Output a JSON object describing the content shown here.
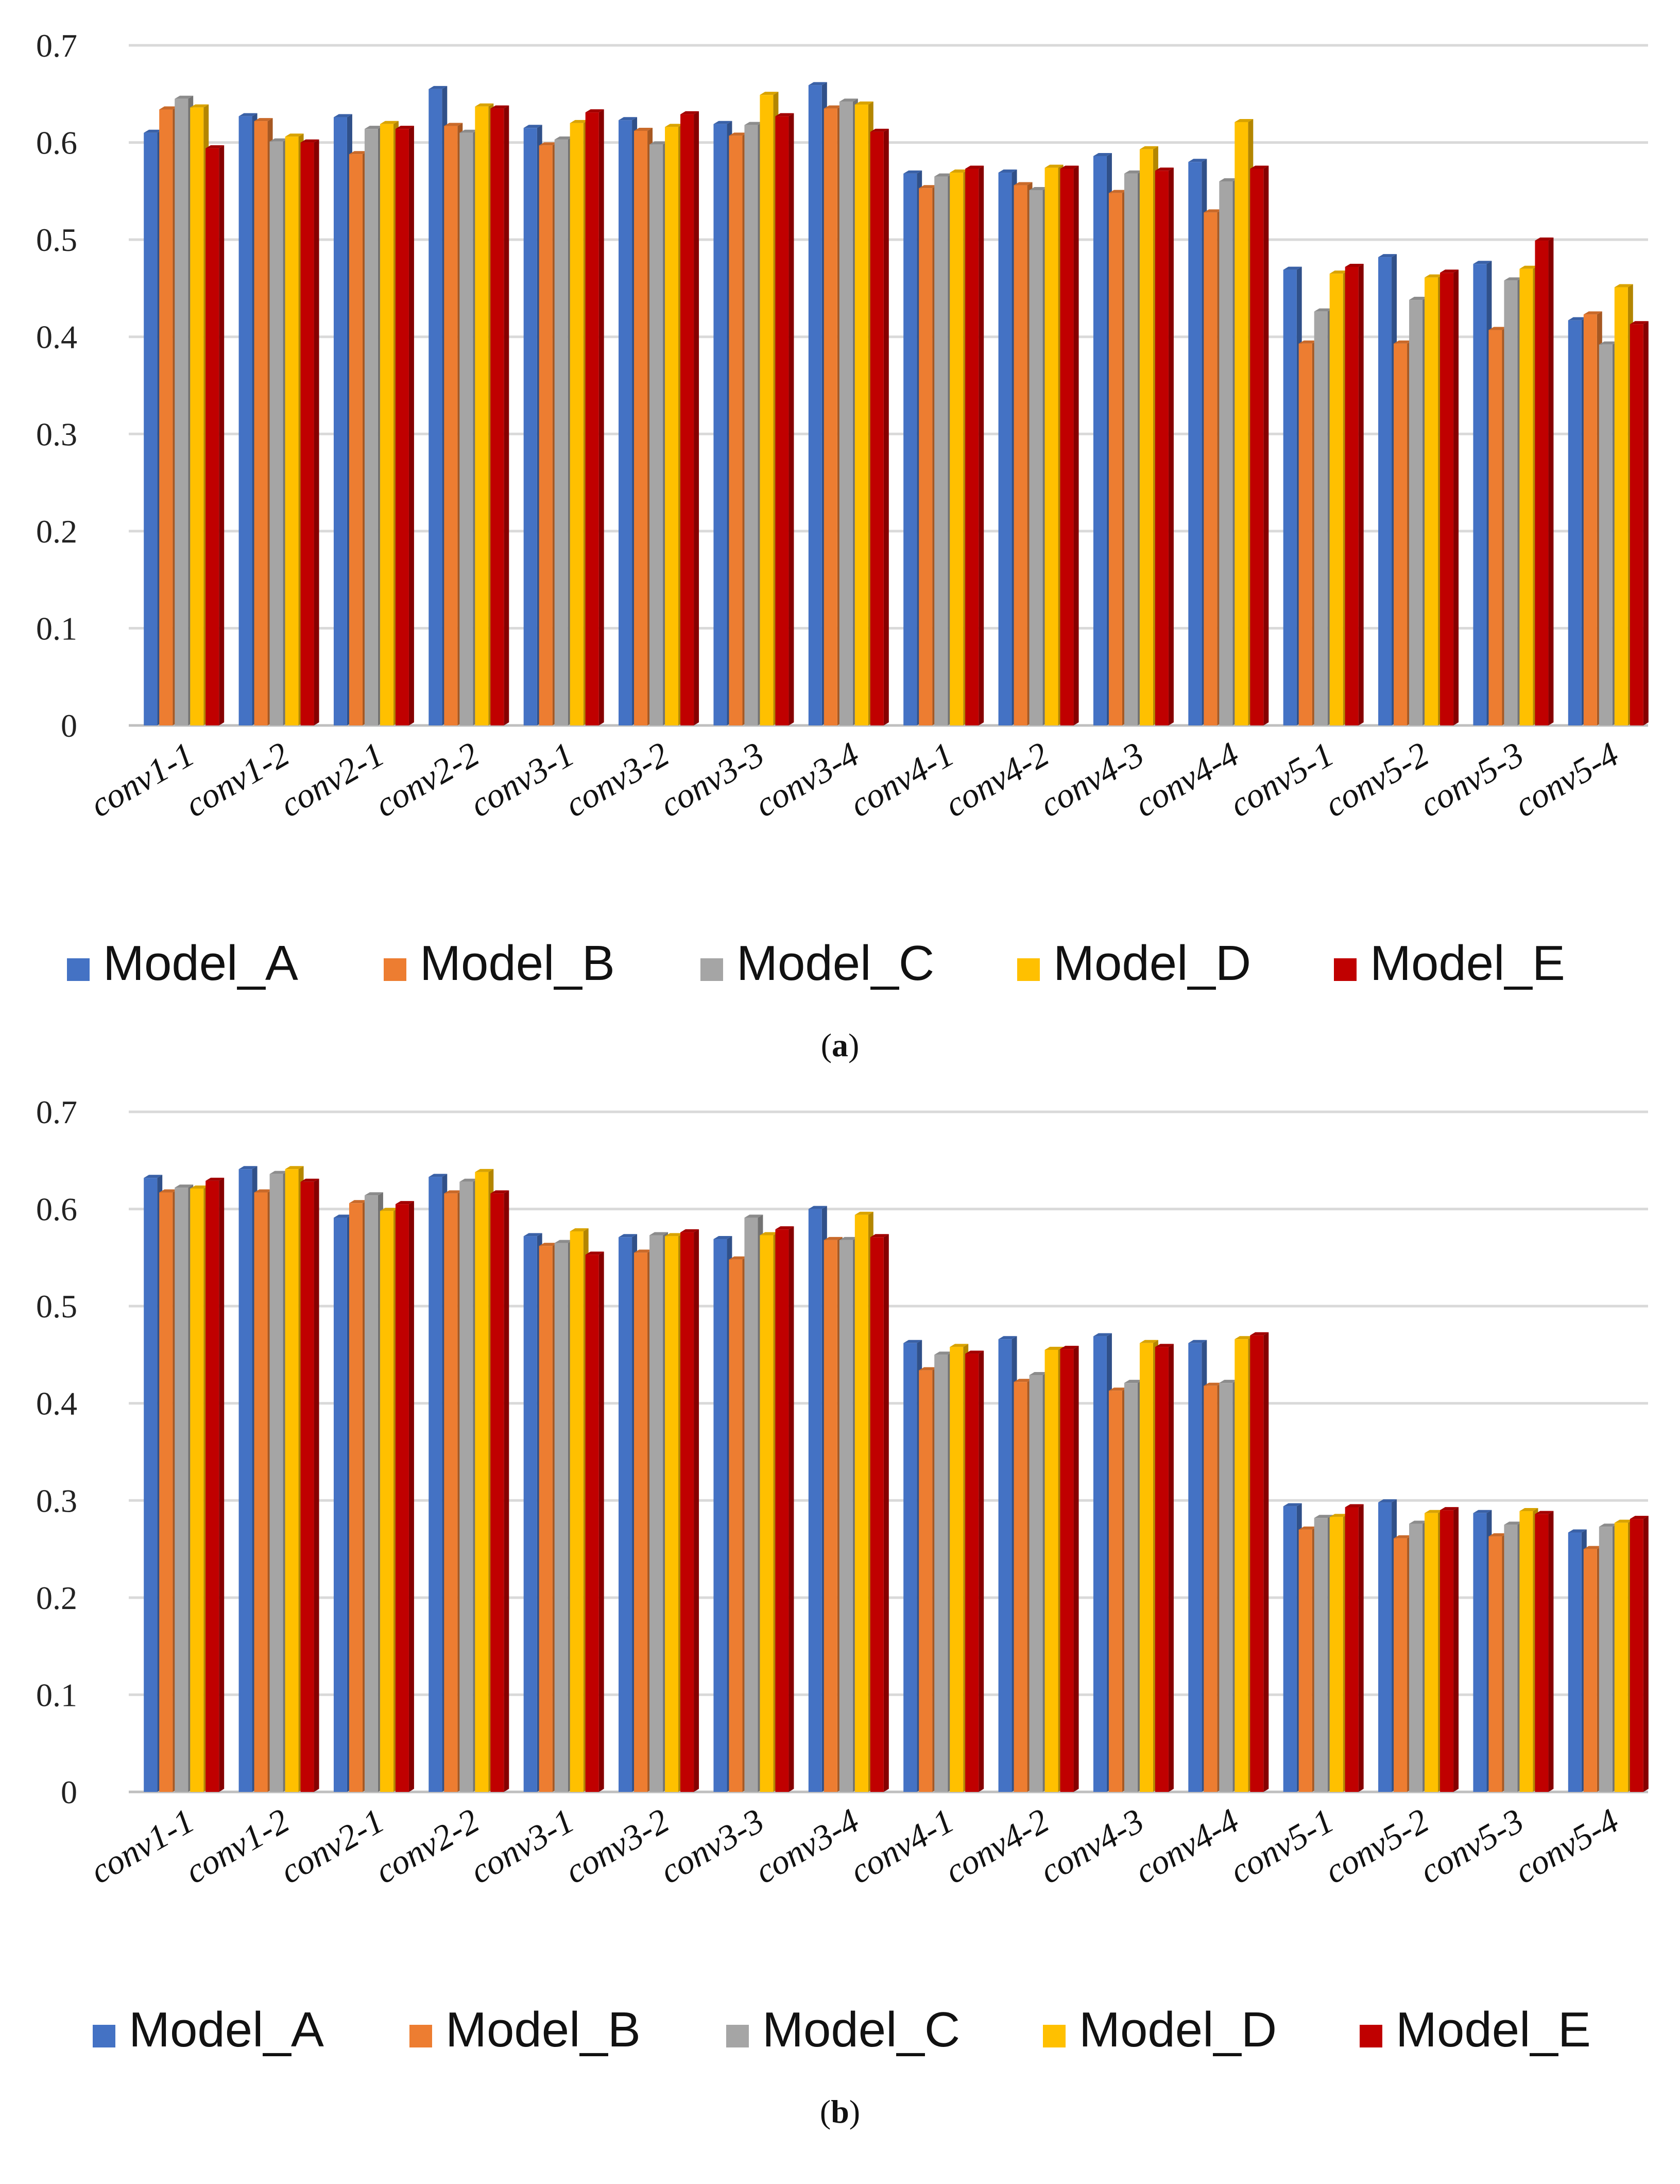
{
  "chart_data": [
    {
      "type": "bar",
      "panel_label": "a",
      "categories": [
        "conv1-1",
        "conv1-2",
        "conv2-1",
        "conv2-2",
        "conv3-1",
        "conv3-2",
        "conv3-3",
        "conv3-4",
        "conv4-1",
        "conv4-2",
        "conv4-3",
        "conv4-4",
        "conv5-1",
        "conv5-2",
        "conv5-3",
        "conv5-4"
      ],
      "series": [
        {
          "name": "Model_A",
          "color": "#4472C4",
          "values": [
            0.61,
            0.627,
            0.626,
            0.655,
            0.615,
            0.623,
            0.619,
            0.659,
            0.568,
            0.569,
            0.586,
            0.58,
            0.469,
            0.482,
            0.475,
            0.417
          ]
        },
        {
          "name": "Model_B",
          "color": "#ED7D31",
          "values": [
            0.634,
            0.622,
            0.588,
            0.617,
            0.597,
            0.612,
            0.607,
            0.635,
            0.553,
            0.556,
            0.548,
            0.528,
            0.393,
            0.393,
            0.407,
            0.423
          ]
        },
        {
          "name": "Model_C",
          "color": "#A5A5A5",
          "values": [
            0.645,
            0.601,
            0.614,
            0.61,
            0.603,
            0.598,
            0.618,
            0.642,
            0.565,
            0.551,
            0.568,
            0.56,
            0.426,
            0.438,
            0.458,
            0.392
          ]
        },
        {
          "name": "Model_D",
          "color": "#FFC000",
          "values": [
            0.636,
            0.606,
            0.619,
            0.637,
            0.62,
            0.616,
            0.649,
            0.639,
            0.569,
            0.574,
            0.593,
            0.621,
            0.465,
            0.461,
            0.47,
            0.451
          ]
        },
        {
          "name": "Model_E",
          "color": "#C00000",
          "values": [
            0.594,
            0.6,
            0.614,
            0.635,
            0.631,
            0.629,
            0.627,
            0.611,
            0.573,
            0.573,
            0.571,
            0.573,
            0.472,
            0.466,
            0.499,
            0.413
          ]
        }
      ],
      "ylim": [
        0,
        0.7
      ],
      "yticks": [
        "0",
        "0.1",
        "0.2",
        "0.3",
        "0.4",
        "0.5",
        "0.6",
        "0.7"
      ],
      "legend_position": "bottom",
      "grid": true
    },
    {
      "type": "bar",
      "panel_label": "b",
      "categories": [
        "conv1-1",
        "conv1-2",
        "conv2-1",
        "conv2-2",
        "conv3-1",
        "conv3-2",
        "conv3-3",
        "conv3-4",
        "conv4-1",
        "conv4-2",
        "conv4-3",
        "conv4-4",
        "conv5-1",
        "conv5-2",
        "conv5-3",
        "conv5-4"
      ],
      "series": [
        {
          "name": "Model_A",
          "color": "#4472C4",
          "values": [
            0.632,
            0.641,
            0.591,
            0.633,
            0.572,
            0.571,
            0.569,
            0.6,
            0.462,
            0.466,
            0.469,
            0.462,
            0.294,
            0.298,
            0.287,
            0.267
          ]
        },
        {
          "name": "Model_B",
          "color": "#ED7D31",
          "values": [
            0.617,
            0.617,
            0.606,
            0.616,
            0.562,
            0.555,
            0.548,
            0.568,
            0.434,
            0.422,
            0.413,
            0.418,
            0.27,
            0.261,
            0.263,
            0.25
          ]
        },
        {
          "name": "Model_C",
          "color": "#A5A5A5",
          "values": [
            0.622,
            0.636,
            0.614,
            0.628,
            0.565,
            0.573,
            0.591,
            0.568,
            0.45,
            0.429,
            0.421,
            0.421,
            0.282,
            0.276,
            0.275,
            0.273
          ]
        },
        {
          "name": "Model_D",
          "color": "#FFC000",
          "values": [
            0.621,
            0.641,
            0.598,
            0.638,
            0.577,
            0.572,
            0.573,
            0.594,
            0.458,
            0.455,
            0.462,
            0.466,
            0.283,
            0.287,
            0.289,
            0.277
          ]
        },
        {
          "name": "Model_E",
          "color": "#C00000",
          "values": [
            0.629,
            0.628,
            0.605,
            0.616,
            0.553,
            0.576,
            0.579,
            0.571,
            0.451,
            0.456,
            0.458,
            0.47,
            0.293,
            0.29,
            0.286,
            0.281
          ]
        }
      ],
      "ylim": [
        0,
        0.7
      ],
      "yticks": [
        "0",
        "0.1",
        "0.2",
        "0.3",
        "0.4",
        "0.5",
        "0.6",
        "0.7"
      ],
      "legend_position": "bottom",
      "grid": true
    }
  ]
}
